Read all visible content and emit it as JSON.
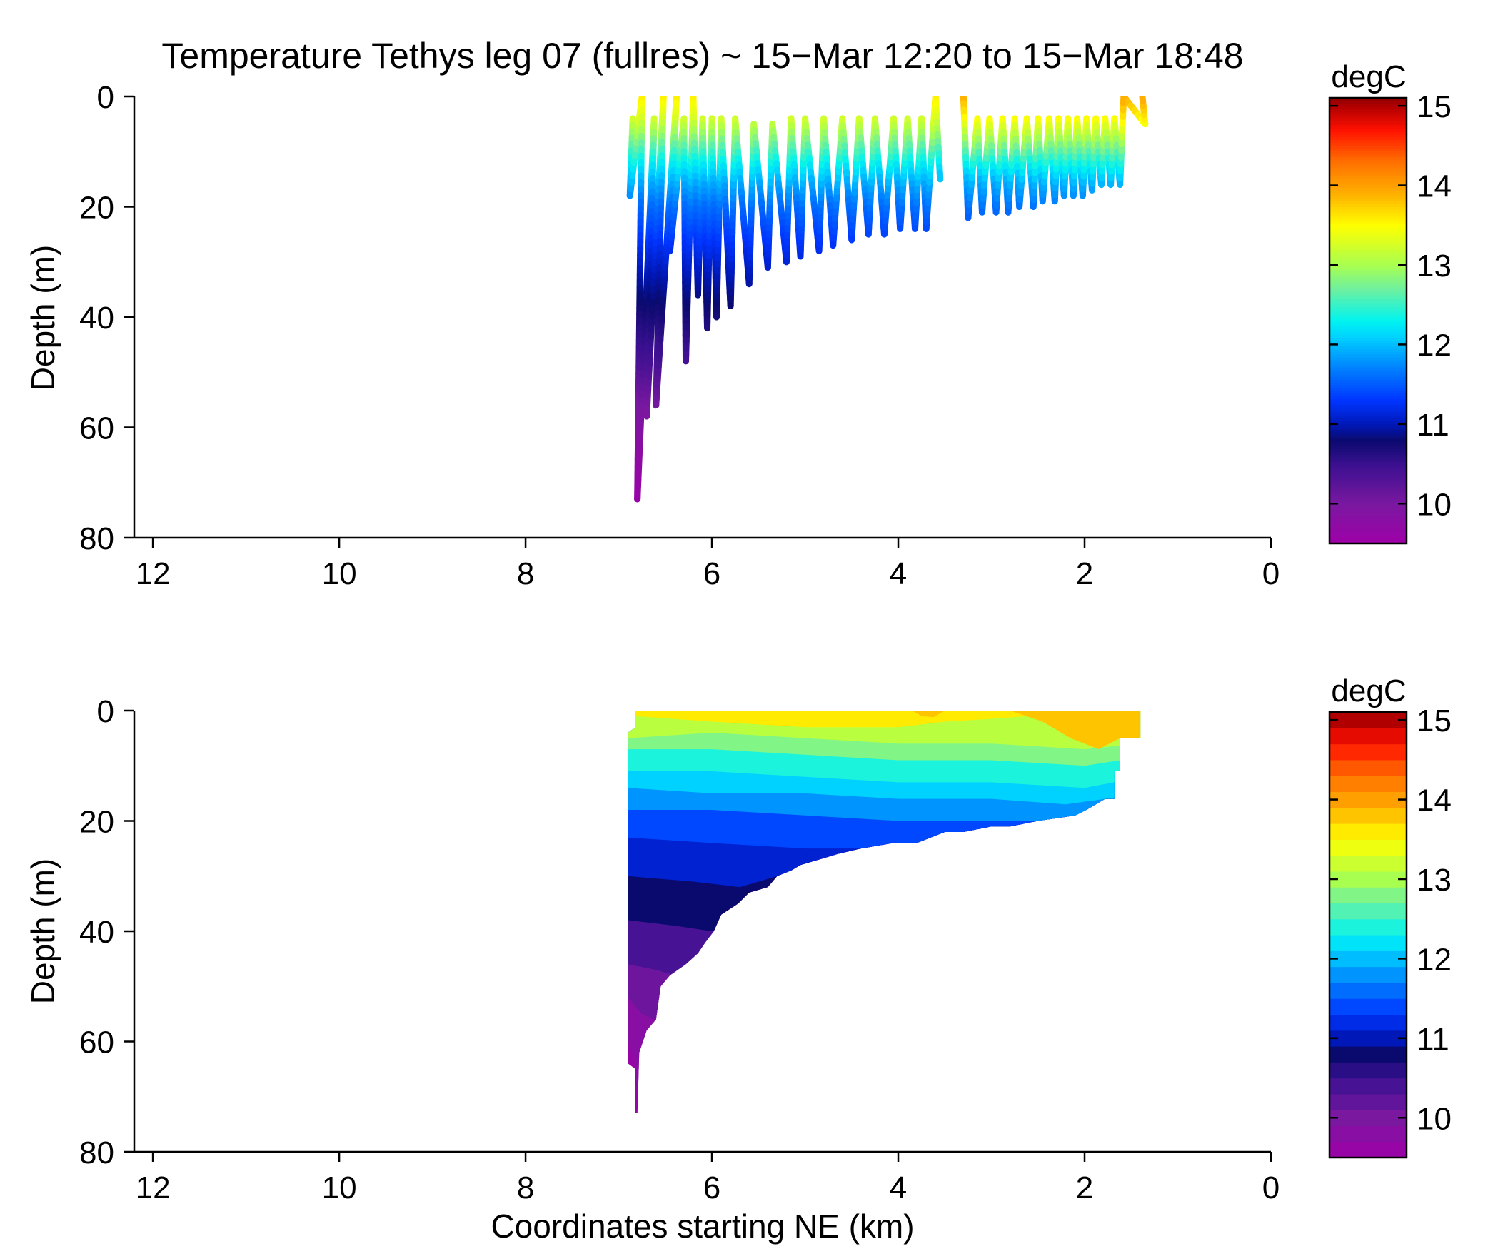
{
  "figure": {
    "title": "Temperature Tethys leg 07 (fullres) ~ 15−Mar 12:20 to 15−Mar 18:48"
  },
  "colormap": {
    "name": "jet-variant",
    "stops": [
      {
        "v": 9.5,
        "color": "#a000a8"
      },
      {
        "v": 10.0,
        "color": "#7a18a0"
      },
      {
        "v": 10.5,
        "color": "#3a1090"
      },
      {
        "v": 10.8,
        "color": "#0a0a6e"
      },
      {
        "v": 11.0,
        "color": "#0018b8"
      },
      {
        "v": 11.3,
        "color": "#0035ff"
      },
      {
        "v": 11.7,
        "color": "#0080ff"
      },
      {
        "v": 12.1,
        "color": "#00d2ff"
      },
      {
        "v": 12.3,
        "color": "#00f4f0"
      },
      {
        "v": 12.7,
        "color": "#6ef0a0"
      },
      {
        "v": 13.0,
        "color": "#a8ff50"
      },
      {
        "v": 13.5,
        "color": "#ffff00"
      },
      {
        "v": 13.9,
        "color": "#ffb000"
      },
      {
        "v": 14.3,
        "color": "#ff7000"
      },
      {
        "v": 14.7,
        "color": "#ff1000"
      },
      {
        "v": 15.0,
        "color": "#b00000"
      },
      {
        "v": 15.1,
        "color": "#900000"
      }
    ]
  },
  "chart_data": [
    {
      "type": "scatter",
      "panel": "top",
      "description_units": "x: distance (km), y: depth (m), color: temperature (degC)",
      "xlabel": "",
      "ylabel": "Depth (m)",
      "xlim": [
        12.2,
        0
      ],
      "ylim": [
        80,
        0
      ],
      "xticks": [
        12,
        10,
        8,
        6,
        4,
        2,
        0
      ],
      "yticks": [
        0,
        20,
        40,
        60,
        80
      ],
      "colorbar": {
        "label": "degC",
        "range": [
          9.5,
          15.1
        ],
        "ticks": [
          10,
          11,
          12,
          13,
          14,
          15
        ],
        "style": "continuous"
      },
      "profile_tops": [
        [
          6.85,
          4
        ],
        [
          6.75,
          0
        ],
        [
          6.62,
          4
        ],
        [
          6.52,
          0
        ],
        [
          6.38,
          0
        ],
        [
          6.3,
          4
        ],
        [
          6.2,
          0
        ],
        [
          6.1,
          4
        ],
        [
          6.0,
          4
        ],
        [
          5.9,
          4
        ],
        [
          5.75,
          4
        ],
        [
          5.55,
          5
        ],
        [
          5.35,
          5
        ],
        [
          5.15,
          4
        ],
        [
          5.0,
          4
        ],
        [
          4.8,
          4
        ],
        [
          4.6,
          4
        ],
        [
          4.42,
          4
        ],
        [
          4.25,
          4
        ],
        [
          4.05,
          4
        ],
        [
          3.9,
          4
        ],
        [
          3.75,
          4
        ],
        [
          3.6,
          0
        ],
        [
          3.3,
          0
        ],
        [
          3.15,
          4
        ],
        [
          3.02,
          4
        ],
        [
          2.88,
          4
        ],
        [
          2.75,
          4
        ],
        [
          2.62,
          4
        ],
        [
          2.5,
          4
        ],
        [
          2.38,
          4
        ],
        [
          2.28,
          4
        ],
        [
          2.18,
          4
        ],
        [
          2.08,
          4
        ],
        [
          1.98,
          4
        ],
        [
          1.88,
          4
        ],
        [
          1.78,
          4
        ],
        [
          1.68,
          4
        ],
        [
          1.58,
          0
        ],
        [
          1.38,
          0
        ]
      ],
      "profile_bottoms": [
        [
          6.88,
          18
        ],
        [
          6.8,
          73
        ],
        [
          6.7,
          58
        ],
        [
          6.6,
          56
        ],
        [
          6.45,
          28
        ],
        [
          6.28,
          48
        ],
        [
          6.15,
          36
        ],
        [
          6.05,
          42
        ],
        [
          5.95,
          40
        ],
        [
          5.8,
          38
        ],
        [
          5.6,
          34
        ],
        [
          5.4,
          31
        ],
        [
          5.2,
          30
        ],
        [
          5.05,
          29
        ],
        [
          4.85,
          28
        ],
        [
          4.7,
          27
        ],
        [
          4.5,
          26
        ],
        [
          4.32,
          25
        ],
        [
          4.15,
          25
        ],
        [
          3.98,
          24
        ],
        [
          3.82,
          24
        ],
        [
          3.7,
          24
        ],
        [
          3.55,
          15
        ],
        [
          3.25,
          22
        ],
        [
          3.1,
          21
        ],
        [
          2.95,
          21
        ],
        [
          2.82,
          21
        ],
        [
          2.7,
          20
        ],
        [
          2.55,
          20
        ],
        [
          2.45,
          19
        ],
        [
          2.32,
          19
        ],
        [
          2.22,
          18
        ],
        [
          2.12,
          18
        ],
        [
          2.02,
          18
        ],
        [
          1.92,
          17
        ],
        [
          1.82,
          16
        ],
        [
          1.72,
          16
        ],
        [
          1.62,
          16
        ],
        [
          1.35,
          5
        ]
      ]
    },
    {
      "type": "heatmap",
      "panel": "bottom",
      "description_units": "x: distance (km), y: depth (m), color: temperature (degC)",
      "xlabel": "Coordinates starting NE (km)",
      "ylabel": "Depth (m)",
      "xlim": [
        12.2,
        0
      ],
      "ylim": [
        80,
        0
      ],
      "xticks": [
        12,
        10,
        8,
        6,
        4,
        2,
        0
      ],
      "yticks": [
        0,
        20,
        40,
        60,
        80
      ],
      "colorbar": {
        "label": "degC",
        "range": [
          9.5,
          15.1
        ],
        "ticks": [
          10,
          11,
          12,
          13,
          14,
          15
        ],
        "style": "discrete",
        "step": 0.2
      },
      "region_top_edge": [
        [
          6.9,
          4
        ],
        [
          6.82,
          3
        ],
        [
          6.82,
          0
        ],
        [
          1.4,
          0
        ]
      ],
      "region_right_edge": [
        [
          1.4,
          0
        ],
        [
          1.4,
          5
        ],
        [
          1.62,
          5
        ],
        [
          1.62,
          11
        ],
        [
          1.68,
          11
        ],
        [
          1.68,
          16
        ],
        [
          1.78,
          16
        ]
      ],
      "region_bottom_edge": [
        [
          1.78,
          16
        ],
        [
          1.98,
          18
        ],
        [
          2.1,
          19
        ],
        [
          2.5,
          20
        ],
        [
          2.8,
          21
        ],
        [
          3.0,
          21
        ],
        [
          3.3,
          22
        ],
        [
          3.5,
          22
        ],
        [
          3.8,
          24
        ],
        [
          4.05,
          24
        ],
        [
          4.4,
          25
        ],
        [
          4.65,
          26
        ],
        [
          4.85,
          27
        ],
        [
          5.05,
          28
        ],
        [
          5.15,
          29
        ],
        [
          5.3,
          30
        ],
        [
          5.4,
          32
        ],
        [
          5.6,
          33
        ],
        [
          5.72,
          35
        ],
        [
          5.9,
          37
        ],
        [
          5.98,
          40
        ],
        [
          6.07,
          42
        ],
        [
          6.15,
          44
        ],
        [
          6.28,
          46
        ],
        [
          6.45,
          48
        ],
        [
          6.55,
          50
        ],
        [
          6.6,
          56
        ],
        [
          6.7,
          58
        ],
        [
          6.78,
          62
        ],
        [
          6.8,
          73
        ],
        [
          6.82,
          73
        ],
        [
          6.82,
          65
        ],
        [
          6.9,
          64
        ],
        [
          6.9,
          4
        ]
      ],
      "isotherm_depths": [
        {
          "t": 13.5,
          "pts": [
            [
              6.82,
              1
            ],
            [
              6.0,
              2
            ],
            [
              5.0,
              3
            ],
            [
              4.0,
              3
            ],
            [
              3.5,
              2
            ],
            [
              3.0,
              1.5
            ],
            [
              2.2,
              0.5
            ],
            [
              1.4,
              0
            ]
          ]
        },
        {
          "t": 13.0,
          "pts": [
            [
              6.9,
              5
            ],
            [
              6.0,
              4
            ],
            [
              5.0,
              5
            ],
            [
              4.0,
              6
            ],
            [
              3.0,
              6
            ],
            [
              2.0,
              7
            ],
            [
              1.4,
              6
            ]
          ]
        },
        {
          "t": 12.7,
          "pts": [
            [
              6.9,
              7
            ],
            [
              6.0,
              7
            ],
            [
              5.0,
              8
            ],
            [
              4.0,
              9
            ],
            [
              3.0,
              9
            ],
            [
              2.0,
              10
            ],
            [
              1.62,
              9
            ]
          ]
        },
        {
          "t": 12.3,
          "pts": [
            [
              6.9,
              11
            ],
            [
              6.0,
              11
            ],
            [
              5.0,
              12
            ],
            [
              4.0,
              13
            ],
            [
              3.0,
              13
            ],
            [
              2.0,
              14
            ],
            [
              1.68,
              13
            ]
          ]
        },
        {
          "t": 12.0,
          "pts": [
            [
              6.9,
              14
            ],
            [
              6.0,
              15
            ],
            [
              5.0,
              15
            ],
            [
              4.0,
              16
            ],
            [
              3.0,
              16
            ],
            [
              2.2,
              17
            ],
            [
              1.78,
              16
            ]
          ]
        },
        {
          "t": 11.7,
          "pts": [
            [
              6.9,
              18
            ],
            [
              6.0,
              18
            ],
            [
              5.0,
              19
            ],
            [
              4.0,
              20
            ],
            [
              3.0,
              20
            ],
            [
              2.5,
              20
            ]
          ]
        },
        {
          "t": 11.3,
          "pts": [
            [
              6.9,
              23
            ],
            [
              6.0,
              24
            ],
            [
              5.0,
              25
            ],
            [
              4.3,
              25
            ]
          ]
        },
        {
          "t": 11.0,
          "pts": [
            [
              6.9,
              30
            ],
            [
              6.2,
              31
            ],
            [
              5.7,
              32
            ],
            [
              5.3,
              30
            ]
          ]
        },
        {
          "t": 10.7,
          "pts": [
            [
              6.9,
              38
            ],
            [
              6.4,
              39
            ],
            [
              6.0,
              40
            ]
          ]
        },
        {
          "t": 10.3,
          "pts": [
            [
              6.9,
              46
            ],
            [
              6.6,
              47
            ],
            [
              6.4,
              48
            ]
          ]
        },
        {
          "t": 10.0,
          "pts": [
            [
              6.9,
              52
            ],
            [
              6.75,
              55
            ],
            [
              6.62,
              56
            ]
          ]
        },
        {
          "t": 9.7,
          "pts": [
            [
              6.9,
              60
            ],
            [
              6.82,
              64
            ],
            [
              6.8,
              73
            ]
          ]
        }
      ]
    }
  ]
}
